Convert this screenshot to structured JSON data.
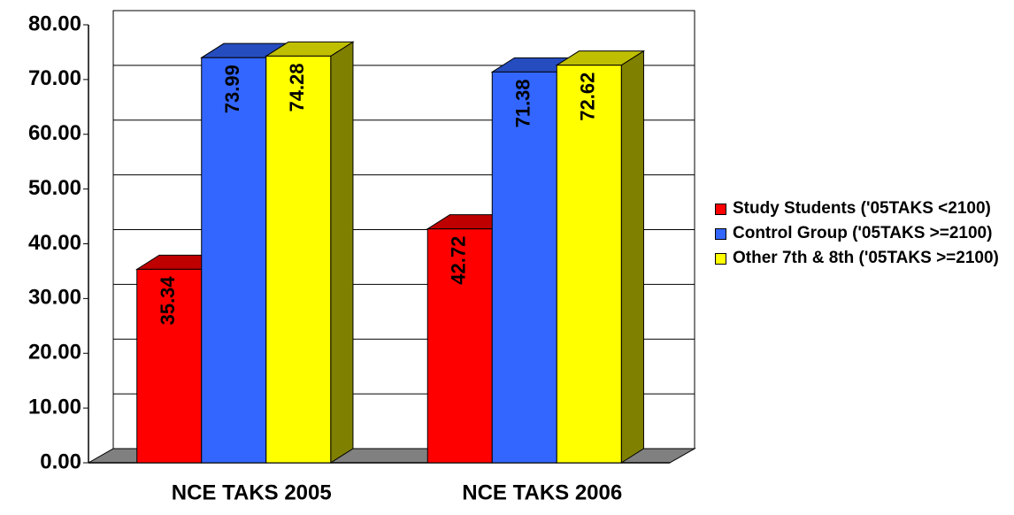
{
  "chart_data": {
    "type": "bar3d",
    "categories": [
      "NCE TAKS 2005",
      "NCE TAKS 2006"
    ],
    "series": [
      {
        "name": "Study Students ('05TAKS <2100)",
        "color": "#ff0000",
        "values": [
          35.34,
          42.72
        ]
      },
      {
        "name": "Control Group ('05TAKS >=2100)",
        "color": "#3366ff",
        "values": [
          73.99,
          71.38
        ]
      },
      {
        "name": "Other 7th & 8th ('05TAKS >=2100)",
        "color": "#ffff00",
        "values": [
          74.28,
          72.62
        ]
      }
    ],
    "ylim": [
      0,
      80
    ],
    "yticks": [
      {
        "value": 0,
        "label": "0.00"
      },
      {
        "value": 10,
        "label": "10.00"
      },
      {
        "value": 20,
        "label": "20.00"
      },
      {
        "value": 30,
        "label": "30.00"
      },
      {
        "value": 40,
        "label": "40.00"
      },
      {
        "value": 50,
        "label": "50.00"
      },
      {
        "value": 60,
        "label": "60.00"
      },
      {
        "value": 70,
        "label": "70.00"
      },
      {
        "value": 80,
        "label": "80.00"
      }
    ],
    "grid": true
  }
}
